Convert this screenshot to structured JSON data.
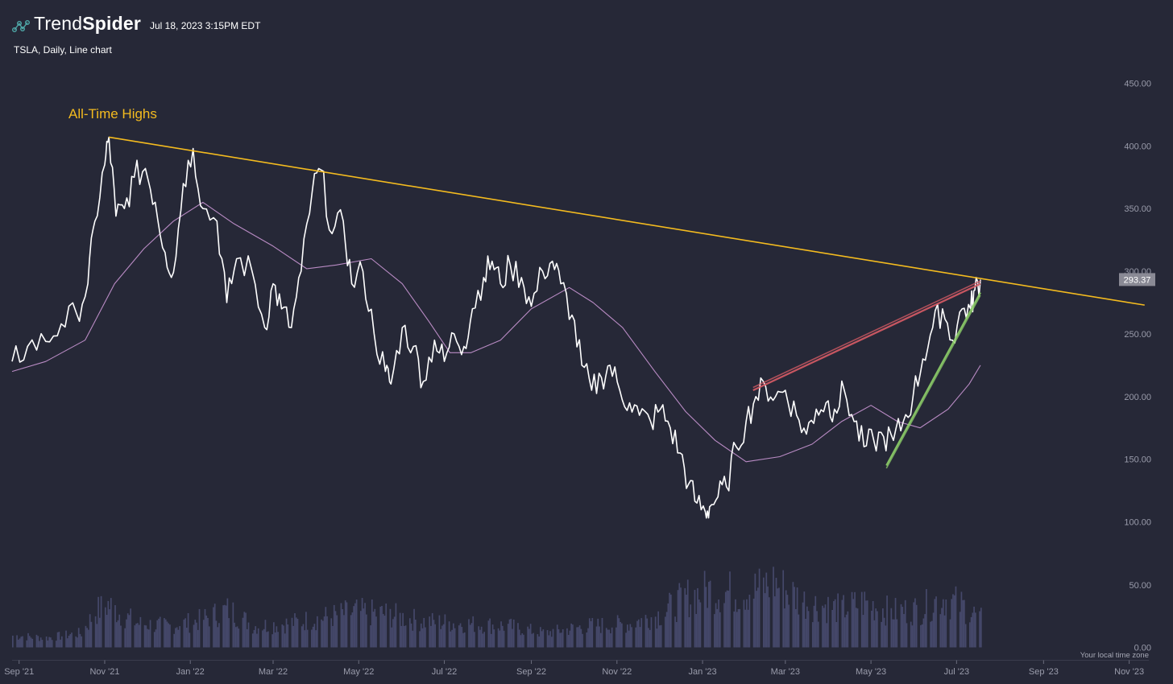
{
  "header": {
    "brand_light": "Trend",
    "brand_bold": "Spider",
    "timestamp": "Jul 18, 2023 3:15PM EDT",
    "subtitle": "TSLA, Daily, Line chart"
  },
  "footer": {
    "timezone_note": "Your local time zone"
  },
  "colors": {
    "background": "#262837",
    "price_line": "#ffffff",
    "moving_average": "#b98bc4",
    "trendline_ath": "#f4bb1f",
    "trendline_resistance": "#d95c66",
    "trendline_support": "#8fd16a",
    "volume": "#45486a",
    "price_tag_bg": "#8a8a95"
  },
  "chart_data": {
    "type": "line",
    "ticker": "TSLA",
    "interval": "Daily",
    "annotation": "All-Time Highs",
    "y_axis": {
      "ticks": [
        "450.00",
        "400.00",
        "350.00",
        "300.00",
        "250.00",
        "200.00",
        "150.00",
        "100.00"
      ],
      "range": [
        95,
        460
      ]
    },
    "volume_axis": {
      "ticks": [
        "50.00",
        "0.00"
      ],
      "range": [
        0,
        65
      ]
    },
    "x_axis": {
      "range": [
        "2021-08-27",
        "2023-11-15"
      ],
      "ticks": [
        {
          "label": "Sep '21",
          "date": "2021-09-01"
        },
        {
          "label": "Nov '21",
          "date": "2021-11-01"
        },
        {
          "label": "Jan '22",
          "date": "2022-01-01"
        },
        {
          "label": "Mar '22",
          "date": "2022-03-01"
        },
        {
          "label": "May '22",
          "date": "2022-05-01"
        },
        {
          "label": "Jul '22",
          "date": "2022-07-01"
        },
        {
          "label": "Sep '22",
          "date": "2022-09-01"
        },
        {
          "label": "Nov '22",
          "date": "2022-11-01"
        },
        {
          "label": "Jan '23",
          "date": "2023-01-01"
        },
        {
          "label": "Mar '23",
          "date": "2023-03-01"
        },
        {
          "label": "May '23",
          "date": "2023-05-01"
        },
        {
          "label": "Jul '23",
          "date": "2023-07-01"
        },
        {
          "label": "Sep '23",
          "date": "2023-09-01"
        },
        {
          "label": "Nov '23",
          "date": "2023-11-01"
        }
      ]
    },
    "last_price": "293.37",
    "series": [
      {
        "role": "price",
        "points": [
          [
            "2021-08-27",
            228
          ],
          [
            "2021-09-07",
            240
          ],
          [
            "2021-09-20",
            244
          ],
          [
            "2021-10-01",
            258
          ],
          [
            "2021-10-12",
            266
          ],
          [
            "2021-10-20",
            290
          ],
          [
            "2021-10-25",
            340
          ],
          [
            "2021-11-01",
            385
          ],
          [
            "2021-11-04",
            407
          ],
          [
            "2021-11-09",
            344
          ],
          [
            "2021-11-15",
            350
          ],
          [
            "2021-11-22",
            375
          ],
          [
            "2021-11-30",
            382
          ],
          [
            "2021-12-07",
            355
          ],
          [
            "2021-12-14",
            315
          ],
          [
            "2021-12-20",
            299
          ],
          [
            "2021-12-27",
            370
          ],
          [
            "2022-01-03",
            398
          ],
          [
            "2022-01-10",
            350
          ],
          [
            "2022-01-20",
            340
          ],
          [
            "2022-01-27",
            275
          ],
          [
            "2022-02-03",
            310
          ],
          [
            "2022-02-14",
            300
          ],
          [
            "2022-02-23",
            255
          ],
          [
            "2022-03-01",
            290
          ],
          [
            "2022-03-07",
            270
          ],
          [
            "2022-03-14",
            255
          ],
          [
            "2022-03-21",
            300
          ],
          [
            "2022-03-29",
            365
          ],
          [
            "2022-04-04",
            381
          ],
          [
            "2022-04-12",
            330
          ],
          [
            "2022-04-20",
            340
          ],
          [
            "2022-04-26",
            290
          ],
          [
            "2022-05-04",
            300
          ],
          [
            "2022-05-12",
            250
          ],
          [
            "2022-05-20",
            220
          ],
          [
            "2022-05-24",
            210
          ],
          [
            "2022-06-01",
            255
          ],
          [
            "2022-06-09",
            240
          ],
          [
            "2022-06-16",
            212
          ],
          [
            "2022-06-24",
            245
          ],
          [
            "2022-07-01",
            228
          ],
          [
            "2022-07-08",
            250
          ],
          [
            "2022-07-15",
            240
          ],
          [
            "2022-07-21",
            270
          ],
          [
            "2022-07-29",
            295
          ],
          [
            "2022-08-04",
            308
          ],
          [
            "2022-08-10",
            290
          ],
          [
            "2022-08-17",
            305
          ],
          [
            "2022-08-25",
            295
          ],
          [
            "2022-09-01",
            272
          ],
          [
            "2022-09-09",
            300
          ],
          [
            "2022-09-16",
            308
          ],
          [
            "2022-09-22",
            290
          ],
          [
            "2022-09-30",
            265
          ],
          [
            "2022-10-07",
            225
          ],
          [
            "2022-10-14",
            205
          ],
          [
            "2022-10-21",
            215
          ],
          [
            "2022-10-27",
            225
          ],
          [
            "2022-11-03",
            205
          ],
          [
            "2022-11-10",
            195
          ],
          [
            "2022-11-17",
            185
          ],
          [
            "2022-11-25",
            180
          ],
          [
            "2022-12-02",
            190
          ],
          [
            "2022-12-09",
            175
          ],
          [
            "2022-12-16",
            155
          ],
          [
            "2022-12-22",
            130
          ],
          [
            "2022-12-28",
            115
          ],
          [
            "2023-01-03",
            108
          ],
          [
            "2023-01-06",
            112
          ],
          [
            "2023-01-12",
            120
          ],
          [
            "2023-01-18",
            128
          ],
          [
            "2023-01-25",
            160
          ],
          [
            "2023-02-01",
            180
          ],
          [
            "2023-02-08",
            200
          ],
          [
            "2023-02-15",
            208
          ],
          [
            "2023-02-22",
            200
          ],
          [
            "2023-03-01",
            205
          ],
          [
            "2023-03-09",
            185
          ],
          [
            "2023-03-16",
            170
          ],
          [
            "2023-03-23",
            190
          ],
          [
            "2023-03-30",
            195
          ],
          [
            "2023-04-05",
            190
          ],
          [
            "2023-04-12",
            205
          ],
          [
            "2023-04-19",
            180
          ],
          [
            "2023-04-26",
            160
          ],
          [
            "2023-05-03",
            165
          ],
          [
            "2023-05-10",
            168
          ],
          [
            "2023-05-17",
            165
          ],
          [
            "2023-05-24",
            180
          ],
          [
            "2023-05-31",
            200
          ],
          [
            "2023-06-07",
            230
          ],
          [
            "2023-06-14",
            255
          ],
          [
            "2023-06-21",
            270
          ],
          [
            "2023-06-28",
            245
          ],
          [
            "2023-07-05",
            270
          ],
          [
            "2023-07-11",
            270
          ],
          [
            "2023-07-14",
            285
          ],
          [
            "2023-07-18",
            293.37
          ]
        ]
      },
      {
        "role": "moving-average",
        "points": [
          [
            "2021-08-27",
            220
          ],
          [
            "2021-09-20",
            228
          ],
          [
            "2021-10-18",
            245
          ],
          [
            "2021-11-08",
            290
          ],
          [
            "2021-11-29",
            318
          ],
          [
            "2021-12-20",
            340
          ],
          [
            "2022-01-10",
            355
          ],
          [
            "2022-02-01",
            338
          ],
          [
            "2022-03-01",
            320
          ],
          [
            "2022-03-25",
            302
          ],
          [
            "2022-04-15",
            305
          ],
          [
            "2022-05-10",
            310
          ],
          [
            "2022-06-01",
            290
          ],
          [
            "2022-06-20",
            260
          ],
          [
            "2022-07-05",
            235
          ],
          [
            "2022-07-20",
            235
          ],
          [
            "2022-08-10",
            245
          ],
          [
            "2022-09-01",
            270
          ],
          [
            "2022-09-28",
            287
          ],
          [
            "2022-10-15",
            275
          ],
          [
            "2022-11-05",
            255
          ],
          [
            "2022-11-28",
            220
          ],
          [
            "2022-12-20",
            188
          ],
          [
            "2023-01-10",
            165
          ],
          [
            "2023-02-01",
            148
          ],
          [
            "2023-02-25",
            152
          ],
          [
            "2023-03-20",
            162
          ],
          [
            "2023-04-10",
            180
          ],
          [
            "2023-05-01",
            193
          ],
          [
            "2023-05-20",
            180
          ],
          [
            "2023-06-05",
            175
          ],
          [
            "2023-06-25",
            190
          ],
          [
            "2023-07-10",
            210
          ],
          [
            "2023-07-18",
            225
          ]
        ]
      }
    ],
    "trendlines": [
      {
        "role": "all-time-high",
        "from": [
          "2021-11-04",
          407
        ],
        "to": [
          "2023-11-12",
          273
        ]
      },
      {
        "role": "resistance",
        "from": [
          "2023-02-06",
          205
        ],
        "to": [
          "2023-07-18",
          290
        ]
      },
      {
        "role": "support",
        "from": [
          "2023-05-12",
          145
        ],
        "to": [
          "2023-07-18",
          283
        ]
      }
    ],
    "volume": [
      [
        "2021-08-27",
        10
      ],
      [
        "2021-09-20",
        8
      ],
      [
        "2021-10-15",
        12
      ],
      [
        "2021-10-25",
        30
      ],
      [
        "2021-11-03",
        36
      ],
      [
        "2021-11-12",
        28
      ],
      [
        "2021-11-25",
        20
      ],
      [
        "2021-12-15",
        18
      ],
      [
        "2022-01-05",
        22
      ],
      [
        "2022-01-28",
        32
      ],
      [
        "2022-02-15",
        18
      ],
      [
        "2022-03-10",
        20
      ],
      [
        "2022-04-05",
        25
      ],
      [
        "2022-04-28",
        30
      ],
      [
        "2022-05-20",
        28
      ],
      [
        "2022-06-15",
        22
      ],
      [
        "2022-07-15",
        20
      ],
      [
        "2022-08-15",
        18
      ],
      [
        "2022-09-10",
        12
      ],
      [
        "2022-10-10",
        18
      ],
      [
        "2022-11-10",
        20
      ],
      [
        "2022-12-01",
        28
      ],
      [
        "2022-12-20",
        42
      ],
      [
        "2023-01-05",
        48
      ],
      [
        "2023-01-27",
        46
      ],
      [
        "2023-02-10",
        50
      ],
      [
        "2023-02-20",
        55
      ],
      [
        "2023-03-15",
        38
      ],
      [
        "2023-04-10",
        32
      ],
      [
        "2023-04-25",
        38
      ],
      [
        "2023-05-15",
        30
      ],
      [
        "2023-06-05",
        32
      ],
      [
        "2023-06-20",
        42
      ],
      [
        "2023-07-05",
        35
      ],
      [
        "2023-07-18",
        24
      ]
    ]
  }
}
